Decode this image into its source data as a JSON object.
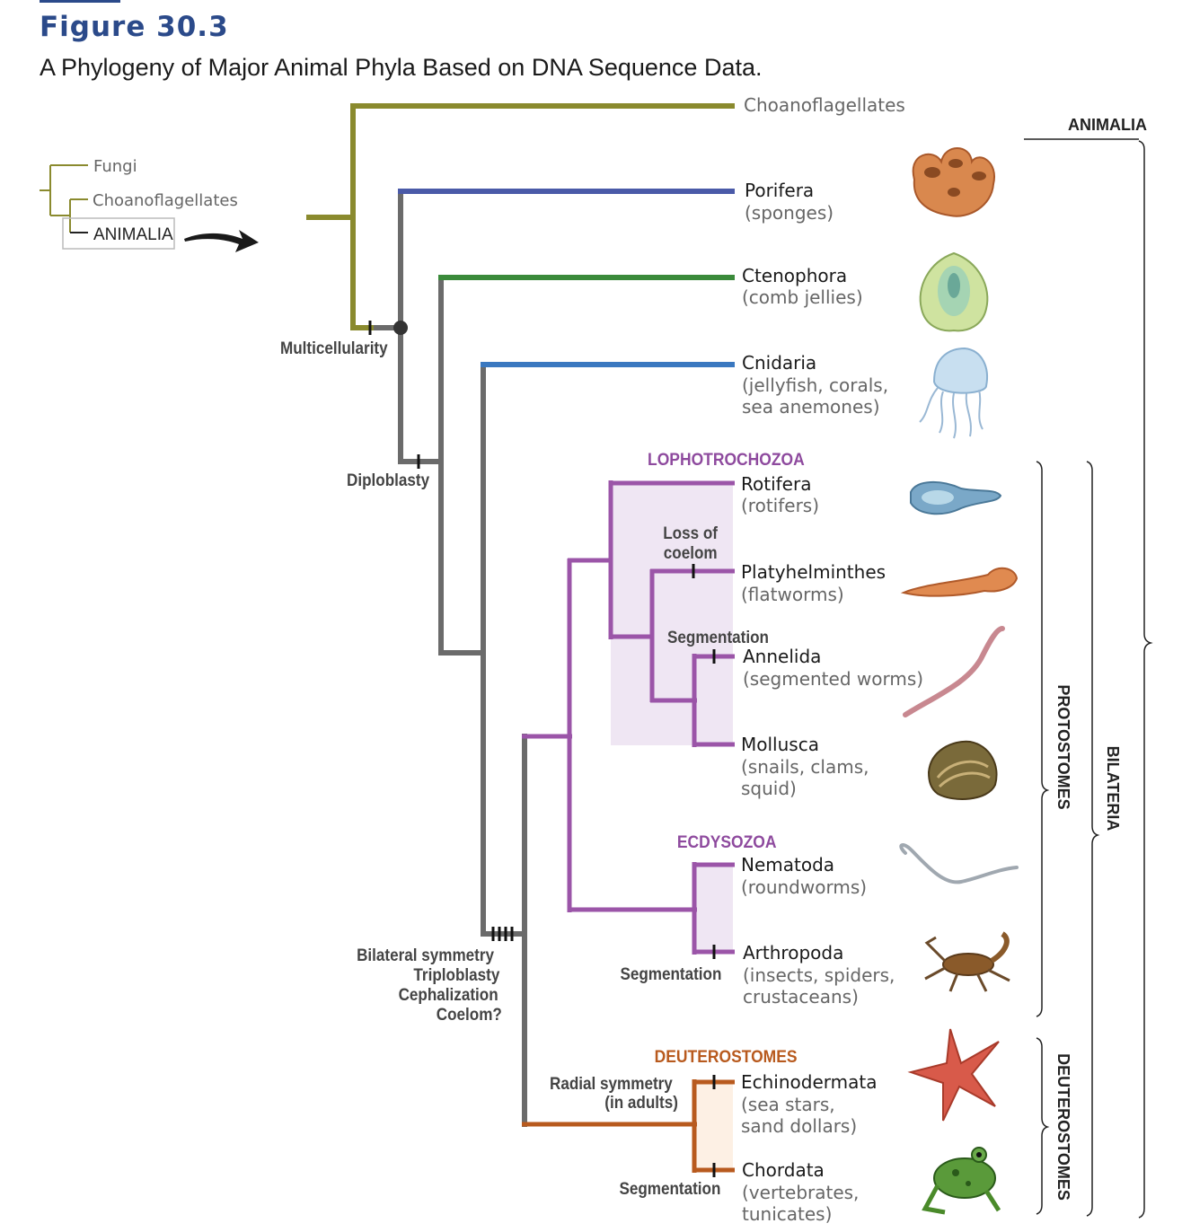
{
  "figure": {
    "label": "Figure 30.3",
    "caption": "A Phylogeny of Major Animal Phyla Based on DNA Sequence Data."
  },
  "inset": {
    "fungi": "Fungi",
    "choanoflagellates": "Choanoflagellates",
    "animalia": "ANIMALIA"
  },
  "taxa": {
    "choanoflagellates": "Choanoflagellates",
    "porifera": {
      "name": "Porifera",
      "lines": [
        "(sponges)"
      ]
    },
    "ctenophora": {
      "name": "Ctenophora",
      "lines": [
        "(comb jellies)"
      ]
    },
    "cnidaria": {
      "name": "Cnidaria",
      "lines": [
        "(jellyfish, corals,",
        "sea anemones)"
      ]
    },
    "rotifera": {
      "name": "Rotifera",
      "lines": [
        "(rotifers)"
      ]
    },
    "platyhelminthes": {
      "name": "Platyhelminthes",
      "lines": [
        "(flatworms)"
      ]
    },
    "annelida": {
      "name": "Annelida",
      "lines": [
        "(segmented worms)"
      ]
    },
    "mollusca": {
      "name": "Mollusca",
      "lines": [
        "(snails, clams,",
        "squid)"
      ]
    },
    "nematoda": {
      "name": "Nematoda",
      "lines": [
        "(roundworms)"
      ]
    },
    "arthropoda": {
      "name": "Arthropoda",
      "lines": [
        "(insects, spiders,",
        "crustaceans)"
      ]
    },
    "echinodermata": {
      "name": "Echinodermata",
      "lines": [
        "(sea stars,",
        "sand dollars)"
      ]
    },
    "chordata": {
      "name": "Chordata",
      "lines": [
        "(vertebrates,",
        "tunicates)"
      ]
    }
  },
  "characters": {
    "multicellularity": "Multicellularity",
    "diploblasty": "Diploblasty",
    "loss_of_coelom": [
      "Loss of",
      "coelom"
    ],
    "segmentation_annelida": "Segmentation",
    "bilateral": [
      "Bilateral symmetry",
      "Triploblasty",
      "Cephalization",
      "Coelom?"
    ],
    "segmentation_arthropoda": "Segmentation",
    "radial": [
      "Radial symmetry",
      "(in adults)"
    ],
    "segmentation_chordata": "Segmentation"
  },
  "groups": {
    "lophotrochozoa": "LOPHOTROCHOZOA",
    "ecdysozoa": "ECDYSOZOA",
    "deuterostomes": "DEUTEROSTOMES"
  },
  "brackets": {
    "animalia": "ANIMALIA",
    "protostomes": "PROTOSTOMES",
    "bilateria": "BILATERIA",
    "deuterostomes": "DEUTEROSTOMES"
  },
  "colors": {
    "olive": "#8a8a2e",
    "gray": "#6b6b6b",
    "blue_porifera": "#4a5aa8",
    "green": "#3a8a3a",
    "blue_cnidaria": "#3a78c0",
    "purple": "#9b55a8",
    "purple_text": "#8e4a9e",
    "orange": "#b85a1e",
    "orange_text": "#b85a1e",
    "purple_shade": "#efe6f3",
    "orange_shade": "#fdf0e4",
    "title_blue": "#2b4a8a"
  }
}
